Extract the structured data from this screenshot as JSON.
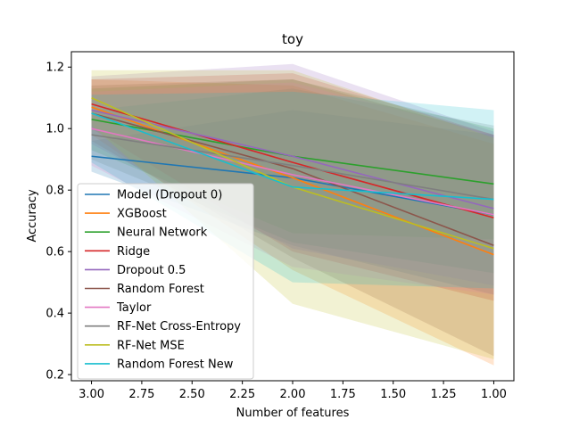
{
  "chart_data": {
    "type": "line",
    "title": "toy",
    "xlabel": "Number of features",
    "ylabel": "Accuracy",
    "x": [
      3.0,
      2.0,
      1.0
    ],
    "xlim": [
      3.1,
      0.9
    ],
    "ylim": [
      0.18,
      1.25
    ],
    "xticks": [
      "3.00",
      "2.75",
      "2.50",
      "2.25",
      "2.00",
      "1.75",
      "1.50",
      "1.25",
      "1.00"
    ],
    "xtick_values": [
      3.0,
      2.75,
      2.5,
      2.25,
      2.0,
      1.75,
      1.5,
      1.25,
      1.0
    ],
    "yticks": [
      "0.2",
      "0.4",
      "0.6",
      "0.8",
      "1.0",
      "1.2"
    ],
    "ytick_values": [
      0.2,
      0.4,
      0.6,
      0.8,
      1.0,
      1.2
    ],
    "grid": false,
    "legend_position": "lower-left",
    "series": [
      {
        "name": "Model (Dropout 0)",
        "color": "#1f77b4",
        "values": [
          0.91,
          0.84,
          0.72
        ],
        "lower": [
          0.86,
          0.62,
          0.46
        ],
        "upper": [
          0.96,
          1.06,
          0.98
        ]
      },
      {
        "name": "XGBoost",
        "color": "#ff7f0e",
        "values": [
          1.07,
          0.84,
          0.59
        ],
        "lower": [
          0.98,
          0.54,
          0.23
        ],
        "upper": [
          1.16,
          1.14,
          0.95
        ]
      },
      {
        "name": "Neural Network",
        "color": "#2ca02c",
        "values": [
          1.03,
          0.91,
          0.82
        ],
        "lower": [
          0.93,
          0.66,
          0.64
        ],
        "upper": [
          1.13,
          1.16,
          1.0
        ]
      },
      {
        "name": "Ridge",
        "color": "#d62728",
        "values": [
          1.08,
          0.89,
          0.71
        ],
        "lower": [
          1.0,
          0.6,
          0.44
        ],
        "upper": [
          1.16,
          1.18,
          0.98
        ]
      },
      {
        "name": "Dropout 0.5",
        "color": "#9467bd",
        "values": [
          1.06,
          0.91,
          0.74
        ],
        "lower": [
          0.95,
          0.61,
          0.49
        ],
        "upper": [
          1.17,
          1.21,
          0.99
        ]
      },
      {
        "name": "Random Forest",
        "color": "#8c564b",
        "values": [
          1.05,
          0.87,
          0.62
        ],
        "lower": [
          0.96,
          0.58,
          0.26
        ],
        "upper": [
          1.14,
          1.16,
          0.98
        ]
      },
      {
        "name": "Taylor",
        "color": "#e377c2",
        "values": [
          1.0,
          0.85,
          0.72
        ],
        "lower": [
          0.88,
          0.55,
          0.46
        ],
        "upper": [
          1.12,
          1.15,
          0.98
        ]
      },
      {
        "name": "RF-Net Cross-Entropy",
        "color": "#7f7f7f",
        "values": [
          0.98,
          0.88,
          0.77
        ],
        "lower": [
          0.9,
          0.63,
          0.53
        ],
        "upper": [
          1.06,
          1.13,
          1.01
        ]
      },
      {
        "name": "RF-Net MSE",
        "color": "#bcbd22",
        "values": [
          1.1,
          0.81,
          0.61
        ],
        "lower": [
          1.01,
          0.43,
          0.25
        ],
        "upper": [
          1.19,
          1.19,
          0.97
        ]
      },
      {
        "name": "Random Forest New",
        "color": "#17becf",
        "values": [
          1.05,
          0.81,
          0.77
        ],
        "lower": [
          0.89,
          0.5,
          0.48
        ],
        "upper": [
          1.11,
          1.12,
          1.06
        ]
      }
    ]
  }
}
